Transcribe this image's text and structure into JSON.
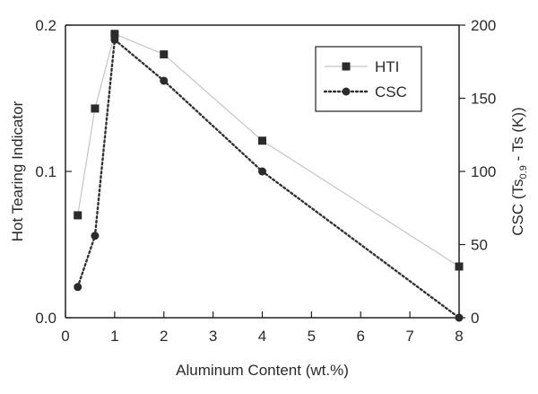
{
  "chart_data": {
    "type": "line",
    "xlabel": "Aluminum Content (wt.%)",
    "ylabel_left": "Hot Tearing Indicator",
    "ylabel_right_pre": "CSC (Ts",
    "ylabel_right_sub": "0.9",
    "ylabel_right_post": " - Ts (K))",
    "x_tick_labels": [
      "0",
      "1",
      "2",
      "3",
      "4",
      "5",
      "6",
      "7",
      "8"
    ],
    "y_left_tick_labels": [
      "0.0",
      "0.1",
      "0.2"
    ],
    "y_right_tick_labels": [
      "0",
      "50",
      "100",
      "150",
      "200"
    ],
    "xlim": [
      0,
      8
    ],
    "y_left_lim": [
      0,
      0.2
    ],
    "y_right_lim": [
      0,
      200
    ],
    "x_axis_note": "nonlinear: ticks at 0, 1, 2, 3, 4, 5, 6, 7, 8 are evenly spaced",
    "legend_position": "top-right",
    "grid": false,
    "series": [
      {
        "name": "HTI",
        "axis": "left",
        "marker": "square",
        "line_style": "solid",
        "color": "#c4c4c4",
        "marker_color": "#2b2b2b",
        "x": [
          0.25,
          0.6,
          1,
          2,
          4,
          8
        ],
        "y": [
          0.07,
          0.143,
          0.194,
          0.18,
          0.121,
          0.035
        ]
      },
      {
        "name": "CSC",
        "axis": "right",
        "marker": "circle",
        "line_style": "dotted",
        "color": "#333333",
        "marker_color": "#2b2b2b",
        "x": [
          0.25,
          0.6,
          1,
          2,
          4,
          8
        ],
        "y": [
          21,
          56,
          190,
          162,
          100,
          0
        ]
      }
    ]
  }
}
